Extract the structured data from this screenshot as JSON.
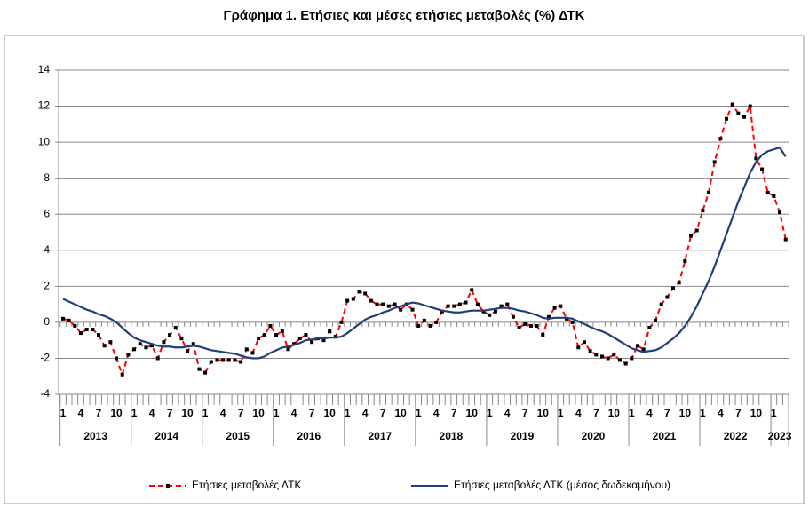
{
  "chart_data": {
    "type": "line",
    "title": "Γράφημα 1. Ετήσιες και μέσες ετήσιες μεταβολές (%) ΔΤΚ",
    "categories": [
      "1",
      null,
      null,
      "4",
      null,
      null,
      "7",
      null,
      null,
      "10",
      null,
      null,
      "1",
      null,
      null,
      "4",
      null,
      null,
      "7",
      null,
      null,
      "10",
      null,
      null,
      "1",
      null,
      null,
      "4",
      null,
      null,
      "7",
      null,
      null,
      "10",
      null,
      null,
      "1",
      null,
      null,
      "4",
      null,
      null,
      "7",
      null,
      null,
      "10",
      null,
      null,
      "1",
      null,
      null,
      "4",
      null,
      null,
      "7",
      null,
      null,
      "10",
      null,
      null,
      "1",
      null,
      null,
      "4",
      null,
      null,
      "7",
      null,
      null,
      "10",
      null,
      null,
      "1",
      null,
      null,
      "4",
      null,
      null,
      "7",
      null,
      null,
      "10",
      null,
      null,
      "1",
      null,
      null,
      "4",
      null,
      null,
      "7",
      null,
      null,
      "10",
      null,
      null,
      "1",
      null,
      null,
      "4",
      null,
      null,
      "7",
      null,
      null,
      "10",
      null,
      null,
      "1",
      null,
      null,
      "4",
      null,
      null,
      "7",
      null,
      null,
      "10",
      null,
      null,
      "1",
      null,
      null
    ],
    "years": [
      "2013",
      "2014",
      "2015",
      "2016",
      "2017",
      "2018",
      "2019",
      "2020",
      "2021",
      "2022",
      "2023"
    ],
    "series": [
      {
        "name": "Ετήσιες μεταβολές ΔΤΚ",
        "color": "#ff0000",
        "dashed": true,
        "markers": true,
        "values": [
          0.2,
          0.1,
          -0.2,
          -0.6,
          -0.4,
          -0.4,
          -0.7,
          -1.3,
          -1.1,
          -2.0,
          -2.9,
          -1.8,
          -1.5,
          -1.2,
          -1.4,
          -1.3,
          -2.0,
          -1.1,
          -0.7,
          -0.3,
          -0.9,
          -1.6,
          -1.2,
          -2.6,
          -2.8,
          -2.2,
          -2.1,
          -2.1,
          -2.1,
          -2.1,
          -2.2,
          -1.5,
          -1.7,
          -0.9,
          -0.7,
          -0.2,
          -0.7,
          -0.5,
          -1.5,
          -1.2,
          -0.9,
          -0.7,
          -1.1,
          -0.9,
          -1.0,
          -0.5,
          -0.8,
          0.0,
          1.2,
          1.3,
          1.7,
          1.6,
          1.2,
          1.0,
          1.0,
          0.9,
          1.0,
          0.7,
          1.0,
          0.7,
          -0.2,
          0.1,
          -0.2,
          0.0,
          0.6,
          0.9,
          0.9,
          1.0,
          1.1,
          1.8,
          1.0,
          0.6,
          0.4,
          0.6,
          0.9,
          1.0,
          0.3,
          -0.3,
          -0.1,
          -0.2,
          -0.2,
          -0.7,
          0.3,
          0.8,
          0.9,
          0.2,
          0.0,
          -1.4,
          -1.1,
          -1.6,
          -1.8,
          -1.9,
          -2.0,
          -1.8,
          -2.1,
          -2.3,
          -2.0,
          -1.3,
          -1.5,
          -0.3,
          0.1,
          1.0,
          1.4,
          1.9,
          2.2,
          3.4,
          4.8,
          5.1,
          6.2,
          7.2,
          8.9,
          10.2,
          11.3,
          12.1,
          11.6,
          11.4,
          12.0,
          9.1,
          8.5,
          7.2,
          7.0,
          6.1,
          4.6
        ]
      },
      {
        "name": "Ετήσιες μεταβολές ΔΤΚ (μέσος δωδεκαμήνου)",
        "color": "#1f3f7a",
        "dashed": false,
        "markers": false,
        "values": [
          1.3,
          1.15,
          1.0,
          0.85,
          0.7,
          0.6,
          0.45,
          0.35,
          0.2,
          0.0,
          -0.3,
          -0.6,
          -0.85,
          -1.0,
          -1.1,
          -1.2,
          -1.3,
          -1.35,
          -1.35,
          -1.4,
          -1.4,
          -1.35,
          -1.3,
          -1.35,
          -1.45,
          -1.55,
          -1.6,
          -1.65,
          -1.7,
          -1.75,
          -1.85,
          -1.95,
          -2.0,
          -2.0,
          -1.9,
          -1.7,
          -1.55,
          -1.4,
          -1.35,
          -1.25,
          -1.15,
          -1.0,
          -0.95,
          -0.9,
          -0.9,
          -0.85,
          -0.85,
          -0.8,
          -0.6,
          -0.35,
          -0.1,
          0.15,
          0.3,
          0.4,
          0.55,
          0.65,
          0.8,
          0.9,
          1.0,
          1.1,
          1.05,
          0.95,
          0.85,
          0.75,
          0.65,
          0.6,
          0.55,
          0.55,
          0.6,
          0.65,
          0.65,
          0.65,
          0.7,
          0.75,
          0.8,
          0.8,
          0.75,
          0.65,
          0.6,
          0.5,
          0.4,
          0.25,
          0.2,
          0.25,
          0.25,
          0.25,
          0.2,
          0.05,
          -0.1,
          -0.25,
          -0.4,
          -0.5,
          -0.65,
          -0.85,
          -1.05,
          -1.25,
          -1.45,
          -1.55,
          -1.65,
          -1.6,
          -1.55,
          -1.4,
          -1.15,
          -0.9,
          -0.6,
          -0.2,
          0.3,
          0.9,
          1.6,
          2.3,
          3.1,
          4.0,
          4.9,
          5.8,
          6.7,
          7.5,
          8.3,
          8.9,
          9.3,
          9.5,
          9.6,
          9.7,
          9.2
        ]
      }
    ],
    "ylim": [
      -4,
      14
    ],
    "yticks": [
      -4,
      -2,
      0,
      2,
      4,
      6,
      8,
      10,
      12,
      14
    ],
    "grid": true,
    "legend": "bottom"
  }
}
